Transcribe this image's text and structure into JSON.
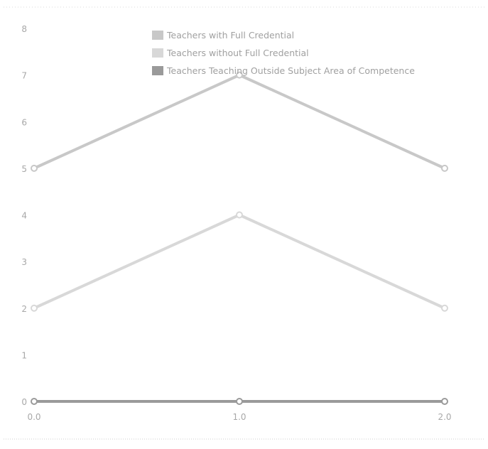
{
  "chart_data": {
    "type": "line",
    "title": "",
    "xlabel": "",
    "ylabel": "",
    "x": [
      0.0,
      1.0,
      2.0
    ],
    "x_tick_labels": [
      "0.0",
      "1.0",
      "2.0"
    ],
    "y_tick_labels": [
      "0",
      "1",
      "2",
      "3",
      "4",
      "5",
      "6",
      "7",
      "8"
    ],
    "xlim": [
      0,
      2
    ],
    "ylim": [
      0,
      8
    ],
    "grid": false,
    "legend_position": "top-center",
    "series": [
      {
        "name": "Teachers with Full Credential",
        "values": [
          5,
          7,
          5
        ],
        "color": "#c8c8c8"
      },
      {
        "name": "Teachers without Full Credential",
        "values": [
          2,
          4,
          2
        ],
        "color": "#d8d8d8"
      },
      {
        "name": "Teachers Teaching Outside Subject Area of Competence",
        "values": [
          0,
          0,
          0
        ],
        "color": "#9a9a9a"
      }
    ]
  }
}
